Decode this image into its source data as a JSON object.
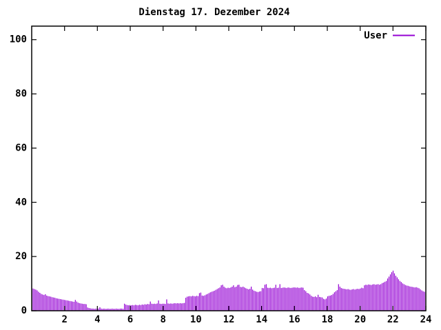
{
  "window": {
    "background": "#ffffff",
    "foreground": "#000000"
  },
  "chart": {
    "title": "Dienstag 17. Dezember 2024"
  },
  "chart_data": {
    "type": "bar",
    "style": "impulses",
    "title": "Dienstag 17. Dezember 2024",
    "xlabel": "",
    "ylabel": "",
    "xlim": [
      0,
      24
    ],
    "ylim": [
      0,
      105
    ],
    "xticks": [
      2,
      4,
      6,
      8,
      10,
      12,
      14,
      16,
      18,
      20,
      22,
      24
    ],
    "yticks": [
      0,
      20,
      40,
      60,
      80,
      100
    ],
    "grid": false,
    "legend": {
      "position": "top-right-inside",
      "entries": [
        "User"
      ]
    },
    "series": [
      {
        "name": "User",
        "color": "#9400d3",
        "unit": "percent",
        "start_minutes": 5,
        "interval_minutes": 5,
        "values": [
          8.2,
          8.0,
          7.8,
          7.5,
          7.0,
          6.6,
          6.2,
          6.0,
          5.8,
          6.1,
          5.6,
          5.4,
          5.3,
          5.2,
          5.0,
          4.9,
          4.8,
          4.6,
          4.5,
          4.4,
          4.3,
          4.2,
          4.1,
          4.0,
          3.9,
          3.8,
          3.7,
          3.6,
          3.5,
          3.4,
          3.3,
          4.0,
          3.4,
          3.0,
          2.8,
          2.7,
          2.6,
          2.5,
          2.5,
          2.4,
          1.2,
          1.0,
          0.9,
          0.8,
          0.8,
          0.7,
          0.8,
          0.8,
          0.8,
          1.3,
          0.8,
          0.7,
          0.8,
          0.7,
          0.7,
          0.8,
          0.7,
          0.7,
          0.8,
          0.7,
          0.7,
          0.8,
          0.7,
          0.7,
          0.8,
          0.8,
          0.7,
          2.6,
          2.3,
          2.1,
          2.0,
          2.1,
          2.0,
          2.1,
          2.0,
          2.2,
          2.1,
          2.0,
          2.2,
          2.1,
          2.3,
          2.2,
          2.4,
          2.3,
          2.5,
          2.4,
          3.4,
          2.6,
          2.5,
          2.6,
          2.5,
          2.7,
          3.8,
          2.6,
          2.5,
          2.6,
          2.6,
          2.5,
          4.2,
          2.7,
          2.6,
          2.7,
          2.6,
          2.7,
          2.8,
          2.7,
          2.8,
          2.7,
          2.8,
          2.7,
          2.8,
          2.9,
          4.8,
          5.2,
          5.3,
          5.4,
          5.3,
          5.5,
          5.4,
          5.3,
          5.5,
          5.4,
          6.5,
          6.7,
          5.6,
          5.5,
          5.7,
          6.0,
          6.2,
          6.5,
          6.8,
          7.0,
          7.2,
          7.4,
          7.7,
          8.0,
          8.3,
          8.6,
          9.4,
          9.6,
          8.9,
          8.5,
          8.3,
          8.5,
          8.4,
          8.6,
          8.9,
          9.4,
          8.7,
          8.9,
          9.5,
          9.6,
          8.8,
          8.7,
          8.9,
          8.6,
          8.3,
          8.1,
          7.9,
          8.1,
          8.9,
          7.8,
          7.4,
          7.2,
          7.0,
          6.9,
          7.1,
          7.2,
          8.4,
          8.3,
          9.6,
          9.8,
          8.5,
          8.4,
          8.5,
          8.3,
          8.4,
          8.5,
          9.6,
          8.4,
          8.5,
          9.8,
          8.4,
          8.5,
          8.6,
          8.5,
          8.4,
          8.6,
          8.5,
          8.4,
          8.5,
          8.6,
          8.6,
          8.5,
          8.6,
          8.4,
          8.5,
          8.6,
          8.5,
          7.6,
          7.2,
          6.6,
          6.4,
          6.0,
          5.5,
          5.2,
          5.1,
          5.3,
          5.0,
          5.9,
          5.1,
          5.0,
          4.9,
          4.4,
          4.2,
          4.5,
          5.3,
          5.5,
          5.6,
          5.8,
          6.2,
          6.8,
          7.2,
          7.6,
          9.8,
          8.9,
          8.4,
          8.2,
          8.1,
          8.0,
          7.9,
          8.0,
          7.8,
          7.7,
          7.9,
          8.0,
          7.8,
          8.0,
          8.1,
          8.0,
          8.2,
          8.5,
          8.3,
          9.4,
          9.6,
          9.5,
          9.7,
          9.6,
          9.5,
          9.7,
          9.8,
          9.6,
          9.7,
          9.8,
          9.6,
          9.8,
          10.2,
          10.4,
          10.7,
          11.0,
          11.9,
          12.6,
          13.4,
          14.2,
          14.8,
          13.8,
          12.9,
          12.3,
          11.6,
          11.0,
          10.6,
          10.1,
          9.8,
          9.5,
          9.3,
          9.2,
          9.0,
          8.9,
          8.8,
          8.7,
          8.6,
          8.7,
          8.5,
          8.3,
          7.9,
          7.5,
          7.2,
          7.0
        ]
      }
    ]
  }
}
